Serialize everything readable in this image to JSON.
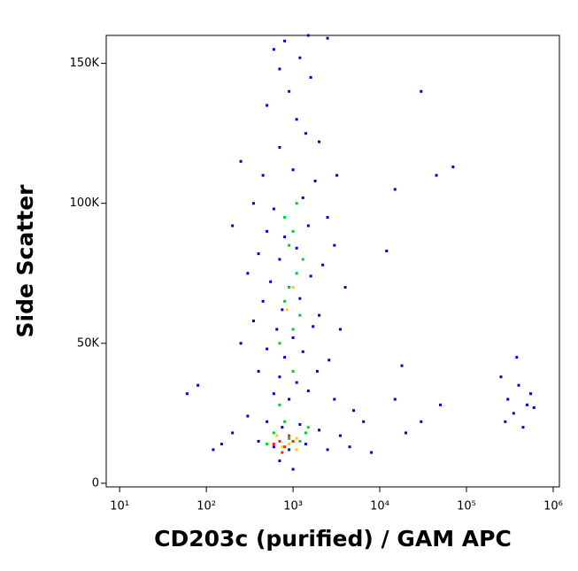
{
  "chart_data": {
    "type": "scatter",
    "xlabel": "CD203c (purified) / GAM APC",
    "ylabel": "Side Scatter",
    "xscale": "log",
    "xlim": [
      7,
      1180000
    ],
    "ylim": [
      -1300,
      160000
    ],
    "xticks": [
      {
        "value": 10,
        "label": "10¹"
      },
      {
        "value": 100,
        "label": "10²"
      },
      {
        "value": 1000,
        "label": "10³"
      },
      {
        "value": 10000,
        "label": "10⁴"
      },
      {
        "value": 100000,
        "label": "10⁵"
      },
      {
        "value": 1000000,
        "label": "10⁶"
      }
    ],
    "yticks": [
      0,
      {
        "value": 50000,
        "label": "50K"
      },
      {
        "value": 100000,
        "label": "100K"
      },
      {
        "value": 150000,
        "label": "150K"
      }
    ],
    "series": [
      {
        "color": "#0000cc",
        "x": [
          600,
          700,
          800,
          1200,
          1600,
          900,
          500,
          1100,
          1400,
          700,
          2000,
          250,
          450,
          1000,
          1800,
          3200,
          350,
          600,
          1300,
          2500,
          200,
          500,
          800,
          1500,
          3000,
          400,
          700,
          1100,
          2200,
          300,
          550,
          900,
          1600,
          4000,
          450,
          750,
          1200,
          2000,
          350,
          650,
          1000,
          1700,
          3500,
          250,
          500,
          800,
          1300,
          2600,
          400,
          700,
          1100,
          1900,
          600,
          900,
          1500,
          3000,
          5000,
          300,
          500,
          750,
          1200,
          2000,
          3500,
          200,
          400,
          600,
          900,
          1400,
          2500,
          4500,
          8000,
          150,
          120,
          60,
          80,
          6500,
          15000,
          20000,
          30000,
          50000,
          18000,
          45000,
          70000,
          30000,
          15000,
          12000,
          250000,
          300000,
          350000,
          400000,
          500000,
          450000,
          280000,
          380000,
          550000,
          600000,
          700,
          1000,
          1500,
          2500
        ],
        "values": [
          155000,
          148000,
          158000,
          152000,
          145000,
          140000,
          135000,
          130000,
          125000,
          120000,
          122000,
          115000,
          110000,
          112000,
          108000,
          110000,
          100000,
          98000,
          102000,
          95000,
          92000,
          90000,
          88000,
          92000,
          85000,
          82000,
          80000,
          84000,
          78000,
          75000,
          72000,
          70000,
          74000,
          70000,
          65000,
          62000,
          66000,
          60000,
          58000,
          55000,
          52000,
          56000,
          55000,
          50000,
          48000,
          45000,
          47000,
          44000,
          40000,
          38000,
          36000,
          40000,
          32000,
          30000,
          33000,
          30000,
          26000,
          24000,
          22000,
          20000,
          21000,
          19000,
          17000,
          18000,
          15000,
          13000,
          12000,
          14000,
          12000,
          13000,
          11000,
          14000,
          12000,
          32000,
          35000,
          22000,
          30000,
          18000,
          22000,
          28000,
          42000,
          110000,
          113000,
          140000,
          105000,
          83000,
          38000,
          30000,
          25000,
          35000,
          28000,
          20000,
          22000,
          45000,
          32000,
          27000,
          8000,
          5000,
          160000,
          159000
        ]
      },
      {
        "color": "#00cc33",
        "x": [
          800,
          1000,
          1100,
          900,
          1200,
          800,
          1000,
          700,
          1300,
          900,
          1100,
          600,
          900,
          1200,
          500,
          1400,
          800,
          1000,
          700,
          1500
        ],
        "values": [
          95000,
          90000,
          75000,
          70000,
          60000,
          65000,
          55000,
          50000,
          80000,
          85000,
          100000,
          18000,
          16000,
          15000,
          14000,
          18000,
          22000,
          40000,
          28000,
          20000
        ]
      },
      {
        "color": "#ffcc00",
        "x": [
          650,
          900,
          1100,
          750,
          1000,
          850,
          1100
        ],
        "values": [
          17000,
          14000,
          16000,
          13000,
          70000,
          62000,
          12000
        ]
      },
      {
        "color": "#ff2200",
        "x": [
          700,
          800,
          900,
          600,
          750,
          1000
        ],
        "values": [
          15000,
          13000,
          17000,
          14000,
          11000,
          15000
        ]
      }
    ]
  }
}
